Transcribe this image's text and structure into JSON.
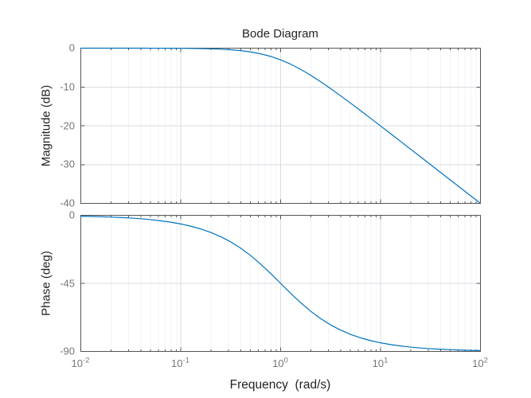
{
  "colors": {
    "line": "#0072BD",
    "major_grid": "#d9dce0",
    "minor_grid": "#f0f3f7",
    "spine": "#555555",
    "tick_label": "#767676",
    "text": "#242424",
    "background": "#ffffff"
  },
  "chart_data": {
    "type": "line",
    "title": "Bode Diagram",
    "xlabel": "Frequency  (rad/s)",
    "x_scale": "log",
    "xlim": [
      0.01,
      100
    ],
    "grid": true,
    "legend": "none",
    "x_tick_labels": [
      {
        "base": "10",
        "exp": "-2"
      },
      {
        "base": "10",
        "exp": "-1"
      },
      {
        "base": "10",
        "exp": "0"
      },
      {
        "base": "10",
        "exp": "1"
      },
      {
        "base": "10",
        "exp": "2"
      }
    ],
    "subplots": [
      {
        "name": "magnitude",
        "ylabel": "Magnitude (dB)",
        "ylim": [
          -40,
          0
        ],
        "y_ticks": [
          0,
          -10,
          -20,
          -30,
          -40
        ],
        "series_key": "magnitude_dB"
      },
      {
        "name": "phase",
        "ylabel": "Phase (deg)",
        "ylim": [
          -90,
          0
        ],
        "y_ticks": [
          0,
          -45,
          -90
        ],
        "series_key": "phase_deg"
      }
    ],
    "series": [
      {
        "name": "response",
        "freq_rad_s": [
          0.01,
          0.012589,
          0.015849,
          0.019953,
          0.025119,
          0.031623,
          0.039811,
          0.050119,
          0.063096,
          0.079433,
          0.1,
          0.12589,
          0.15849,
          0.19953,
          0.25119,
          0.31623,
          0.39811,
          0.50119,
          0.63096,
          0.79433,
          1,
          1.2589,
          1.5849,
          1.9953,
          2.5119,
          3.1623,
          3.9811,
          5.0119,
          6.3096,
          7.9433,
          10,
          12.589,
          15.849,
          19.953,
          25.119,
          31.623,
          39.811,
          50.119,
          63.096,
          79.433,
          100
        ],
        "magnitude_dB": [
          -0.0004,
          -0.0007,
          -0.0011,
          -0.0017,
          -0.0027,
          -0.0043,
          -0.0069,
          -0.0109,
          -0.0173,
          -0.0273,
          -0.0432,
          -0.0683,
          -0.1077,
          -0.1696,
          -0.2657,
          -0.4139,
          -0.6389,
          -0.9732,
          -1.4555,
          -2.1243,
          -3.0103,
          -4.1243,
          -5.4554,
          -6.9734,
          -8.639,
          -10.4139,
          -12.2658,
          -14.1696,
          -16.1078,
          -18.0684,
          -20.0432,
          -22.0272,
          -24.0173,
          -26.0111,
          -28.0068,
          -30.0044,
          -32.0028,
          -34.0018,
          -36.0011,
          -38.0007,
          -40.0004
        ],
        "phase_deg": [
          -0.573,
          -0.721,
          -0.908,
          -1.143,
          -1.439,
          -1.811,
          -2.28,
          -2.869,
          -3.611,
          -4.542,
          -5.711,
          -7.175,
          -9.005,
          -11.284,
          -14.098,
          -17.548,
          -21.705,
          -26.615,
          -32.25,
          -38.46,
          -45,
          -51.54,
          -57.75,
          -63.385,
          -68.295,
          -72.452,
          -75.902,
          -78.716,
          -80.995,
          -82.825,
          -84.289,
          -85.458,
          -86.389,
          -87.13,
          -87.72,
          -88.189,
          -88.561,
          -88.857,
          -89.092,
          -89.279,
          -89.427
        ]
      }
    ]
  }
}
